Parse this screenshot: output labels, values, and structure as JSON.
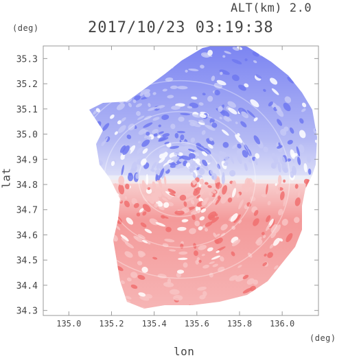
{
  "header": {
    "altitude_label": "ALT(km) 2.0",
    "timestamp": "2017/10/23 03:19:38",
    "y_unit": "(deg)",
    "x_unit": "(deg)"
  },
  "chart_data": {
    "type": "heatmap",
    "title": "2017/10/23 03:19:38",
    "subtitle": "ALT(km) 2.0",
    "xlabel": "lon",
    "ylabel": "lat",
    "xlim": [
      134.88,
      136.17
    ],
    "ylim": [
      34.28,
      35.35
    ],
    "x_ticks": [
      135.0,
      135.2,
      135.4,
      135.6,
      135.8,
      136.0
    ],
    "x_tick_labels": [
      "135.0",
      "135.2",
      "135.4",
      "135.6",
      "135.8",
      "136.0"
    ],
    "y_ticks": [
      34.3,
      34.4,
      34.5,
      34.6,
      34.7,
      34.8,
      34.9,
      35.0,
      35.1,
      35.2,
      35.3
    ],
    "y_tick_labels": [
      "34.3",
      "34.4",
      "34.5",
      "34.6",
      "34.7",
      "34.8",
      "34.9",
      "35.0",
      "35.1",
      "35.2",
      "35.3"
    ],
    "radar_center": {
      "lon": 135.52,
      "lat": 34.82
    },
    "colors": {
      "toward": "#6f78f0",
      "away": "#f07070",
      "neutral": "#f2f2f6"
    },
    "regions": [
      {
        "name": "north-sector",
        "sign": "toward",
        "lat_range": [
          34.82,
          35.35
        ],
        "intensity": 0.6
      },
      {
        "name": "south-sector",
        "sign": "away",
        "lat_range": [
          34.28,
          34.82
        ],
        "intensity": 0.6
      }
    ],
    "grid": false
  }
}
